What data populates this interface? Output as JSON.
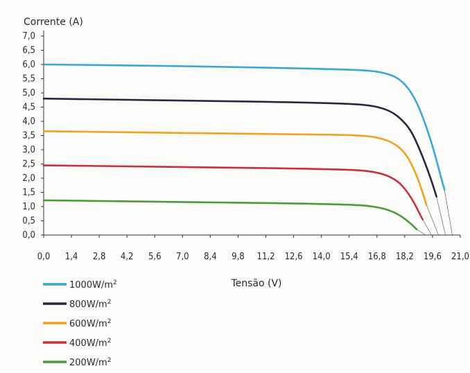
{
  "chart_data": {
    "type": "line",
    "ylabel": "Corrente (A)",
    "xlabel": "Tensão (V)",
    "xlim": [
      0,
      21.0
    ],
    "ylim": [
      0,
      7.0
    ],
    "x_ticks": [
      "0,0",
      "1,4",
      "2,8",
      "4,2",
      "5,6",
      "7,0",
      "8,4",
      "9,8",
      "11,2",
      "12,6",
      "14,0",
      "15,4",
      "16,8",
      "18,2",
      "19,6",
      "21,0"
    ],
    "y_ticks": [
      "0,0",
      "0,5",
      "1,0",
      "1,5",
      "2,0",
      "2,5",
      "3,0",
      "3,5",
      "4,0",
      "4,5",
      "5,0",
      "5,5",
      "6,0",
      "6,5",
      "7,0"
    ],
    "grid": false,
    "legend_position": "bottom-left",
    "series": [
      {
        "name": "1000W/m2",
        "color": "#3aa7d4",
        "x": [
          0,
          4,
          8,
          12,
          15.4,
          16.5,
          17.2,
          17.8,
          18.3,
          18.8,
          19.3,
          19.7,
          20.0,
          20.2
        ],
        "y": [
          6.0,
          5.97,
          5.93,
          5.88,
          5.82,
          5.78,
          5.7,
          5.55,
          5.25,
          4.7,
          3.8,
          2.9,
          2.1,
          1.6
        ]
      },
      {
        "name": "800W/m2",
        "color": "#2e2341",
        "x": [
          0,
          4,
          8,
          12,
          15.0,
          16.2,
          16.9,
          17.5,
          18.0,
          18.5,
          18.9,
          19.3,
          19.6,
          19.8
        ],
        "y": [
          4.8,
          4.76,
          4.72,
          4.68,
          4.63,
          4.58,
          4.5,
          4.35,
          4.1,
          3.7,
          3.1,
          2.4,
          1.8,
          1.35
        ]
      },
      {
        "name": "600W/m2",
        "color": "#f0a11e",
        "x": [
          0,
          4,
          8,
          12,
          15.4,
          16.4,
          17.0,
          17.5,
          18.0,
          18.4,
          18.8,
          19.1,
          19.3
        ],
        "y": [
          3.65,
          3.62,
          3.58,
          3.55,
          3.52,
          3.48,
          3.4,
          3.28,
          3.05,
          2.7,
          2.1,
          1.5,
          1.05
        ]
      },
      {
        "name": "400W/m2",
        "color": "#c8303c",
        "x": [
          0,
          4,
          8,
          12,
          15.4,
          16.4,
          17.1,
          17.6,
          18.0,
          18.4,
          18.7,
          18.95,
          19.1
        ],
        "y": [
          2.45,
          2.42,
          2.38,
          2.35,
          2.3,
          2.25,
          2.15,
          2.0,
          1.8,
          1.45,
          1.1,
          0.75,
          0.55
        ]
      },
      {
        "name": "200W/m2",
        "color": "#4a9a38",
        "x": [
          0,
          4,
          8,
          12,
          15.4,
          16.3,
          16.9,
          17.4,
          17.9,
          18.3,
          18.6,
          18.8
        ],
        "y": [
          1.22,
          1.19,
          1.15,
          1.12,
          1.07,
          1.03,
          0.97,
          0.88,
          0.72,
          0.52,
          0.34,
          0.2
        ]
      }
    ]
  }
}
